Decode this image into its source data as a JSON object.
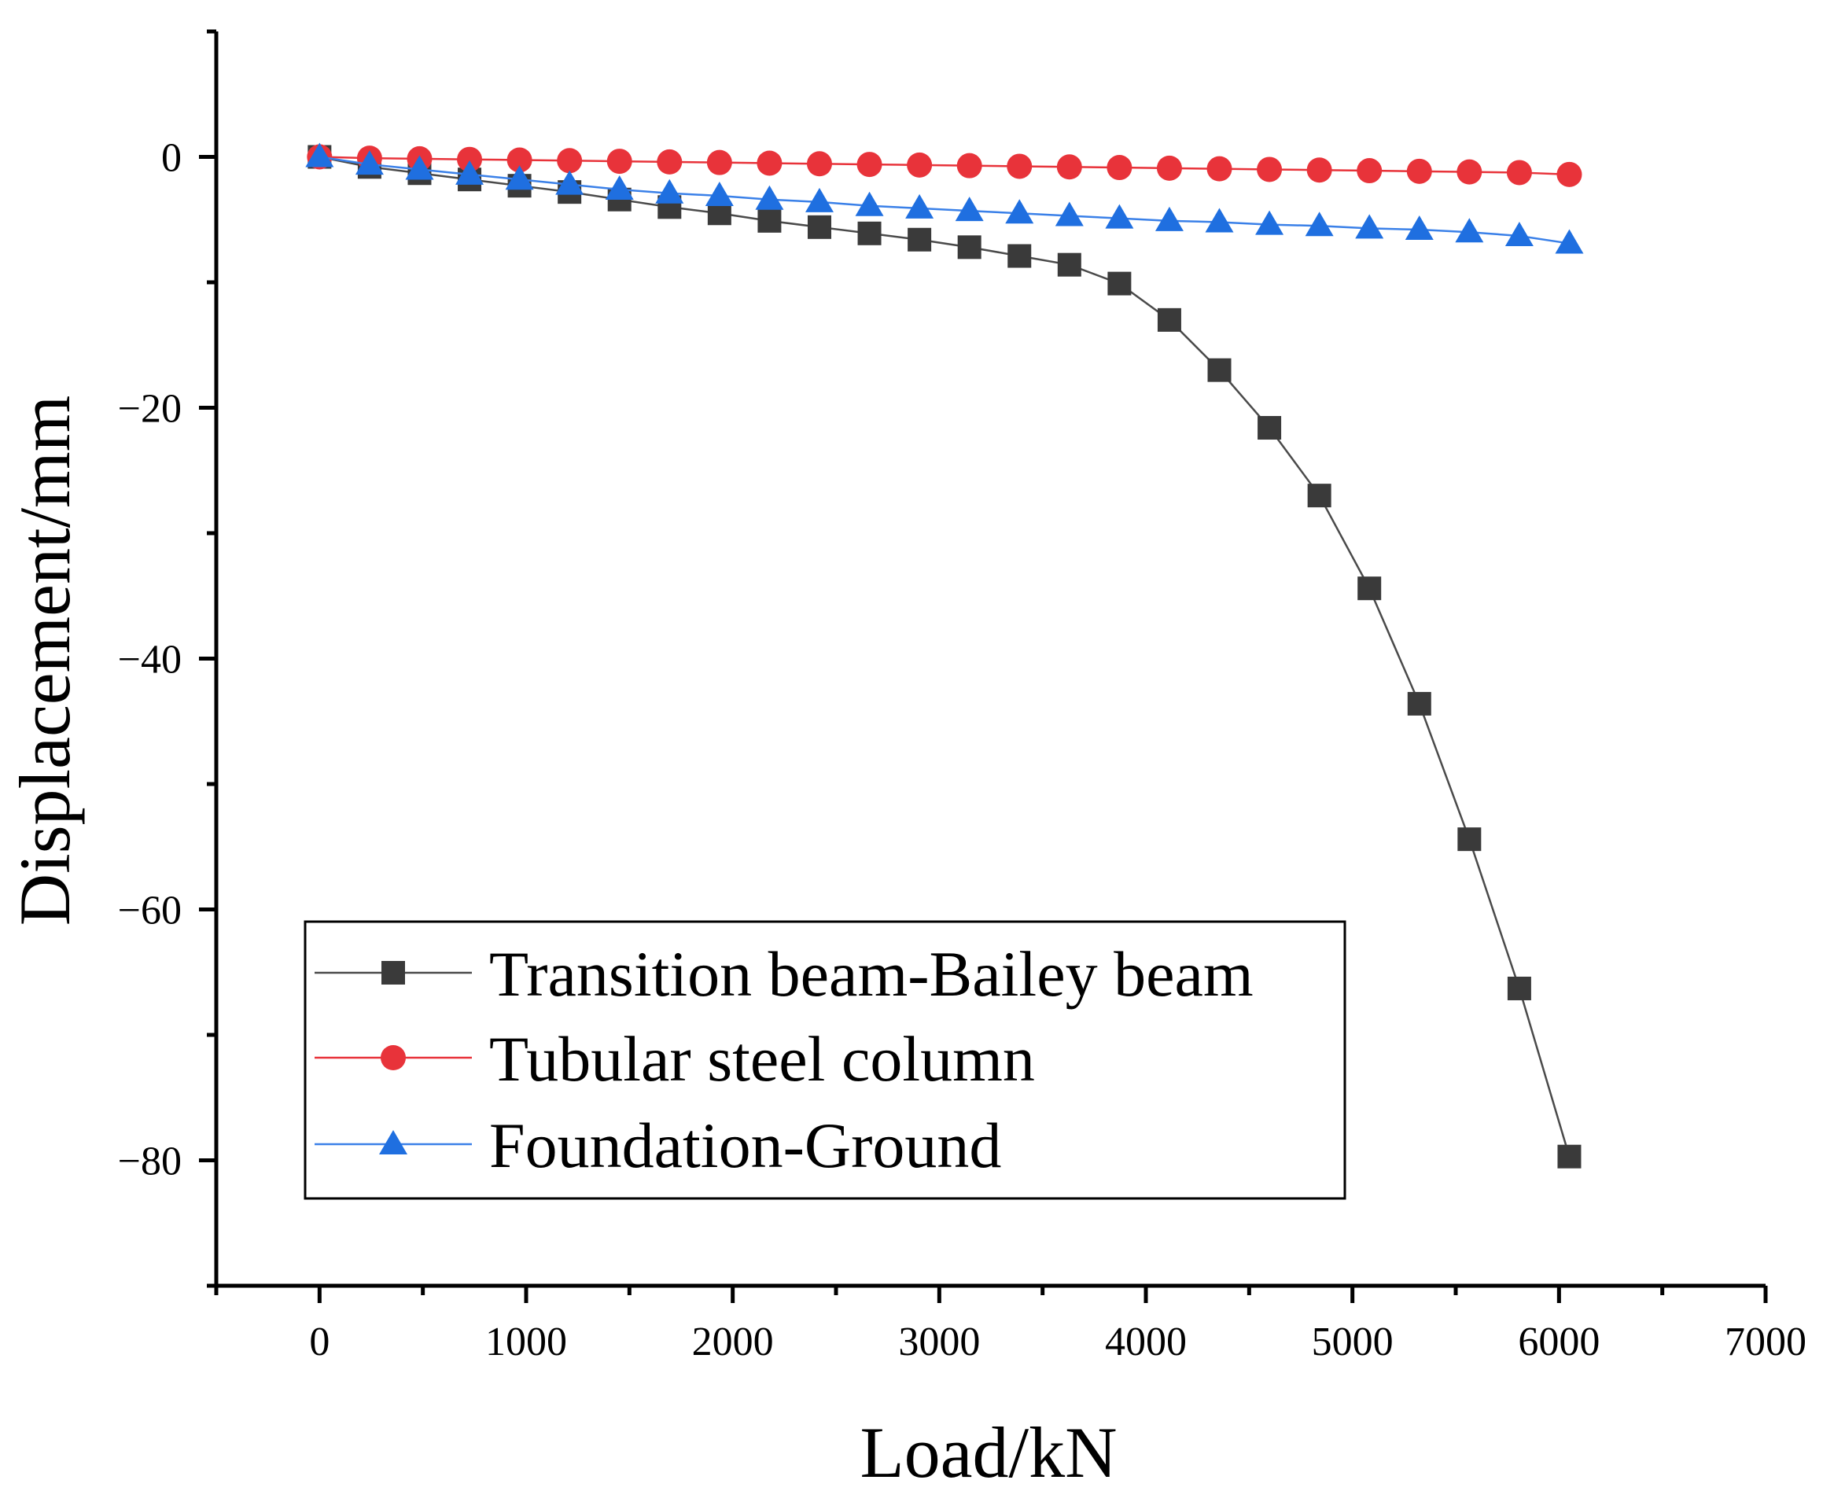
{
  "chart_data": {
    "type": "line",
    "title": "",
    "xlabel": "Load/kN",
    "ylabel": "Displacement/mm",
    "xlim": [
      -500,
      7000
    ],
    "ylim": [
      -90,
      10
    ],
    "x_major_ticks": [
      0,
      1000,
      2000,
      3000,
      4000,
      5000,
      6000,
      7000
    ],
    "x_tick_labels": [
      "0",
      "1000",
      "2000",
      "3000",
      "4000",
      "5000",
      "6000",
      "7000"
    ],
    "x_minor_ticks": [
      -500,
      500,
      1500,
      2500,
      3500,
      4500,
      5500,
      6500
    ],
    "y_major_ticks": [
      0,
      -20,
      -40,
      -60,
      -80
    ],
    "y_tick_labels": [
      "0",
      "−20",
      "−40",
      "−60",
      "−80"
    ],
    "y_minor_ticks": [
      10,
      -10,
      -30,
      -50,
      -70,
      -90
    ],
    "grid": false,
    "legend_position": "bottom-left",
    "x": [
      0,
      242,
      484,
      726,
      968,
      1210,
      1452,
      1694,
      1936,
      2178,
      2420,
      2662,
      2904,
      3146,
      3388,
      3630,
      3872,
      4114,
      4356,
      4598,
      4840,
      5082,
      5324,
      5566,
      5808,
      6050
    ],
    "series": [
      {
        "name": "Transition beam-Bailey beam",
        "color": "#3a3a3a",
        "line_color": "#4a4a4a",
        "marker": "square",
        "values": [
          0,
          -0.8,
          -1.3,
          -1.8,
          -2.3,
          -2.8,
          -3.4,
          -4.0,
          -4.5,
          -5.1,
          -5.6,
          -6.1,
          -6.6,
          -7.2,
          -7.9,
          -8.6,
          -10.1,
          -13.0,
          -17.0,
          -21.6,
          -27.0,
          -34.4,
          -43.6,
          -54.4,
          -66.3,
          -79.7
        ]
      },
      {
        "name": "Tubular steel column",
        "color": "#e8333a",
        "line_color": "#e8333a",
        "marker": "circle",
        "values": [
          0,
          -0.1,
          -0.15,
          -0.2,
          -0.25,
          -0.3,
          -0.35,
          -0.4,
          -0.45,
          -0.5,
          -0.55,
          -0.6,
          -0.65,
          -0.7,
          -0.75,
          -0.8,
          -0.85,
          -0.9,
          -0.95,
          -1.0,
          -1.05,
          -1.1,
          -1.15,
          -1.2,
          -1.25,
          -1.4
        ]
      },
      {
        "name": "Foundation-Ground",
        "color": "#1f6fe0",
        "line_color": "#3a80e8",
        "marker": "triangle",
        "values": [
          0,
          -0.6,
          -1.0,
          -1.4,
          -1.8,
          -2.2,
          -2.6,
          -2.9,
          -3.1,
          -3.4,
          -3.6,
          -3.9,
          -4.1,
          -4.3,
          -4.5,
          -4.7,
          -4.9,
          -5.1,
          -5.2,
          -5.4,
          -5.5,
          -5.7,
          -5.8,
          -6.0,
          -6.3,
          -6.9
        ]
      }
    ]
  }
}
